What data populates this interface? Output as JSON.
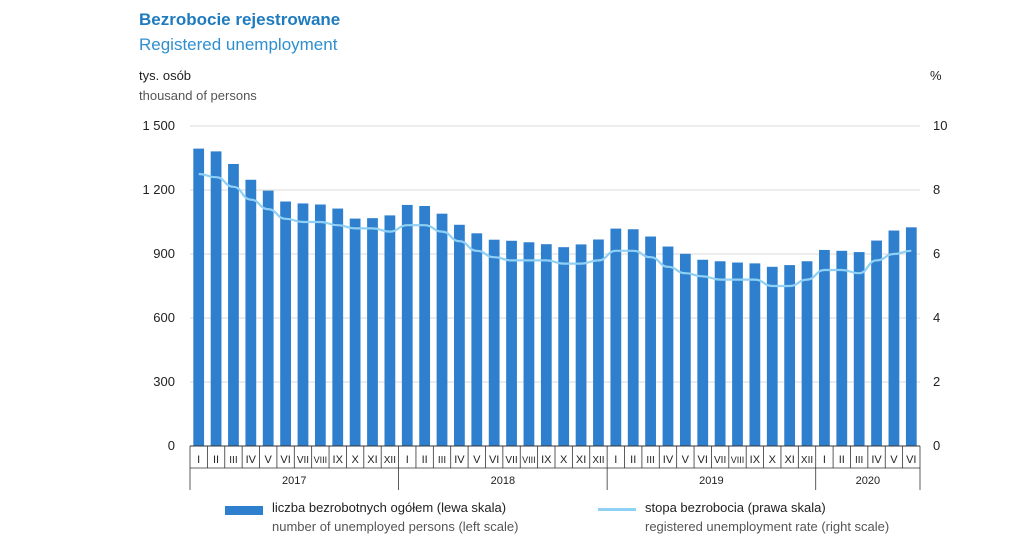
{
  "header": {
    "title_pl": "Bezrobocie rejestrowane",
    "title_en": "Registered unemployment",
    "left_unit_pl": "tys. osób",
    "left_unit_en": "thousand of persons",
    "right_unit": "%"
  },
  "legend": {
    "bars_pl": "liczba bezrobotnych ogółem (lewa skala)",
    "bars_en": "number of unemployed persons (left scale)",
    "line_pl": "stopa bezrobocia (prawa skala)",
    "line_en": "registered unemployment rate (right scale)"
  },
  "colors": {
    "bars": "#2f7fcf",
    "line": "#8fd0f5",
    "grid": "#d9d9d9"
  },
  "chart_data": {
    "type": "bar",
    "categories": [
      "I",
      "II",
      "III",
      "IV",
      "V",
      "VI",
      "VII",
      "VIII",
      "IX",
      "X",
      "XI",
      "XII",
      "I",
      "II",
      "III",
      "IV",
      "V",
      "VI",
      "VII",
      "VIII",
      "IX",
      "X",
      "XI",
      "XII",
      "I",
      "II",
      "III",
      "IV",
      "V",
      "VI",
      "VII",
      "VIII",
      "IX",
      "X",
      "XI",
      "XII",
      "I",
      "II",
      "III",
      "IV",
      "V",
      "VI"
    ],
    "year_groups": [
      {
        "label": "2017",
        "count": 12
      },
      {
        "label": "2018",
        "count": 12
      },
      {
        "label": "2019",
        "count": 12
      },
      {
        "label": "2020",
        "count": 6
      }
    ],
    "series": [
      {
        "name": "liczba bezrobotnych ogółem (lewa skala)",
        "axis": "left",
        "values": [
          1394,
          1381,
          1322,
          1248,
          1197,
          1146,
          1137,
          1132,
          1113,
          1066,
          1068,
          1081,
          1130,
          1125,
          1089,
          1037,
          997,
          967,
          962,
          955,
          946,
          932,
          945,
          968,
          1019,
          1016,
          982,
          935,
          901,
          873,
          866,
          860,
          856,
          840,
          848,
          866,
          919,
          915,
          909,
          963,
          1010,
          1025
        ]
      },
      {
        "name": "stopa bezrobocia (prawa skala)",
        "axis": "right",
        "values": [
          8.5,
          8.4,
          8.1,
          7.7,
          7.4,
          7.1,
          7.0,
          7.0,
          6.9,
          6.8,
          6.8,
          6.7,
          6.9,
          6.9,
          6.7,
          6.4,
          6.1,
          5.9,
          5.8,
          5.8,
          5.8,
          5.7,
          5.7,
          5.8,
          6.1,
          6.1,
          5.9,
          5.6,
          5.4,
          5.3,
          5.2,
          5.2,
          5.2,
          5.0,
          5.0,
          5.2,
          5.5,
          5.5,
          5.4,
          5.8,
          6.0,
          6.1
        ]
      }
    ],
    "ylim_left": [
      0,
      1500
    ],
    "yticks_left": [
      "0",
      "300",
      "600",
      "900",
      "1 200",
      "1 500"
    ],
    "ylim_right": [
      0,
      10
    ],
    "yticks_right": [
      "0",
      "2",
      "4",
      "6",
      "8",
      "10"
    ],
    "grid": true,
    "legend_position": "bottom"
  }
}
